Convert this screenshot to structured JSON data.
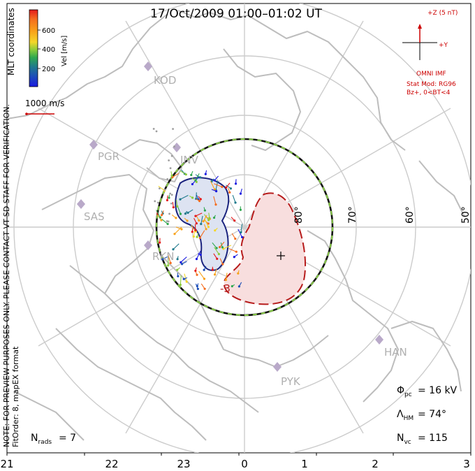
{
  "title": "17/Oct/2009  01:00–01:02  UT",
  "colorbar": {
    "ticks": [
      "600",
      "400",
      "200"
    ],
    "label": "Vel [m/s]",
    "colors": [
      "#e31a1c",
      "#f46d1f",
      "#f8a21a",
      "#f4d629",
      "#8ccc3a",
      "#2fa84f",
      "#1f7a8c",
      "#1d4fb8",
      "#1a1ae0"
    ]
  },
  "coordinate_label": "MLT coordinates",
  "velocity_scale_label": "1000 m/s",
  "imf": {
    "z_label": "+Z (5 nT)",
    "y_label": "+Y",
    "source": "OMNI IMF",
    "model": "Stat Mod: RG96",
    "condition": "Bz+, 0<BT<4"
  },
  "latitude_labels": [
    "80°",
    "70°",
    "60°",
    "50°"
  ],
  "stations": [
    "KOD",
    "PGR",
    "INV",
    "SAS",
    "RKN",
    "HAN",
    "PYK"
  ],
  "contour_label": "-3",
  "side_note_1": "NOTE: FOR PREVIEW PURPOSES ONLY. PLEASE CONTACT VT-SD STAFF FOR VERIFICATION.",
  "side_note_2": "FitOrder: 8, mapEX format",
  "stats": {
    "phi_pc": "= 16 kV",
    "lambda_hm": "= 74°",
    "n_vc": "= 115",
    "n_rads": "= 7"
  },
  "mlt_ticks": [
    "21",
    "22",
    "23",
    "0",
    "1",
    "2",
    "3"
  ],
  "colors": {
    "grid": "#cccccc",
    "coast": "#bdbdbd",
    "station": "#b9a9c9",
    "imf": "#cc0000",
    "negative_cell": "#1a237e",
    "positive_cell": "#b71c1c"
  }
}
